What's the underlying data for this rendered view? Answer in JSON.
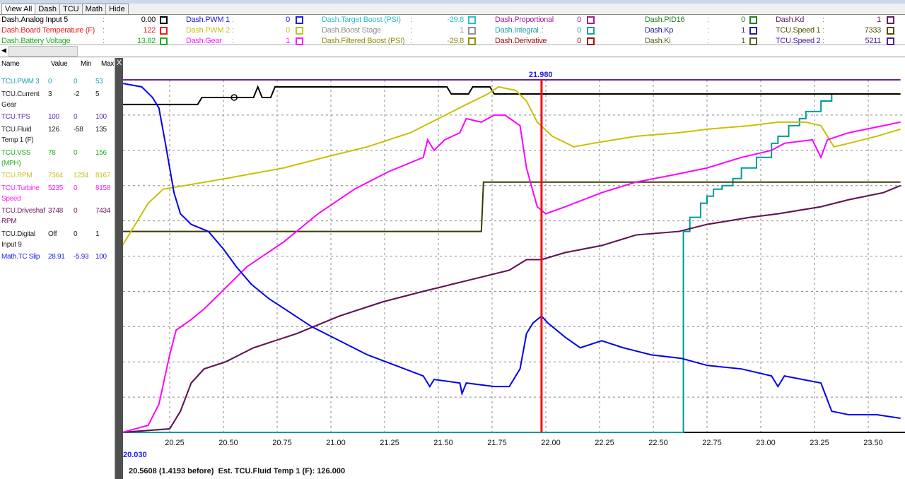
{
  "tabs": [
    "View All",
    "Dash",
    "TCU",
    "Math",
    "Hide"
  ],
  "legend": [
    [
      {
        "name": "Dash.Analog Input 5",
        "value": "0.00",
        "color": "#000000"
      },
      {
        "name": "Dash.Board Temperature (F)",
        "value": "122",
        "color": "#e82020"
      },
      {
        "name": "Dash.Battery Voltage",
        "value": "13.82",
        "color": "#20b020"
      }
    ],
    [
      {
        "name": "Dash.PWM 1",
        "value": "0",
        "color": "#2020e0"
      },
      {
        "name": "Dash.PWM 2",
        "value": "0",
        "color": "#c8c020"
      },
      {
        "name": "Dash.Gear",
        "value": "1",
        "color": "#ff20ff"
      }
    ],
    [
      {
        "name": "Dash.Target Boost (PSI)",
        "value": "-29.8",
        "color": "#30c0c8"
      },
      {
        "name": "Dash.Boost Stage",
        "value": "1",
        "color": "#909090"
      },
      {
        "name": "Dash.Filtered Boost (PSI)",
        "value": "-29.8",
        "color": "#909010"
      }
    ],
    [
      {
        "name": "Dash.Proportional",
        "value": "0",
        "color": "#a020a0"
      },
      {
        "name": "Dash.Integral",
        "value": "0",
        "color": "#20a0a0"
      },
      {
        "name": "Dash.Derivative",
        "value": "0",
        "color": "#a01010"
      }
    ],
    [
      {
        "name": "Dash.PID16",
        "value": "0",
        "color": "#208020"
      },
      {
        "name": "Dash.Kp",
        "value": "1",
        "color": "#2020a0"
      },
      {
        "name": "Dash.Ki",
        "value": "1",
        "color": "#606020"
      }
    ],
    [
      {
        "name": "Dash.Kd",
        "value": "1",
        "color": "#602060"
      },
      {
        "name": "TCU.Speed 1",
        "value": "7333",
        "color": "#505000"
      },
      {
        "name": "TCU.Speed 2",
        "value": "5211",
        "color": "#5020a0"
      }
    ]
  ],
  "colon": ":",
  "table": {
    "headers": [
      "Name",
      "Value",
      "Min",
      "Max"
    ],
    "rows": [
      {
        "name": "TCU.PWM 3",
        "value": "0",
        "min": "0",
        "max": "53",
        "color": "#20a0b0"
      },
      {
        "name": "TCU.Current Gear",
        "value": "3",
        "min": "-2",
        "max": "5",
        "color": "#222222"
      },
      {
        "name": "TCU.TPS",
        "value": "100",
        "min": "0",
        "max": "100",
        "color": "#6030b0"
      },
      {
        "name": "TCU.Fluid Temp 1 (F)",
        "value": "126",
        "min": "-58",
        "max": "135",
        "color": "#222222"
      },
      {
        "name": "TCU.VSS (MPH)",
        "value": "78",
        "min": "0",
        "max": "156",
        "color": "#20b020"
      },
      {
        "name": "TCU.RPM",
        "value": "7364",
        "min": "1234",
        "max": "8167",
        "color": "#c8c020"
      },
      {
        "name": "TCU.Turbine Speed",
        "value": "5235",
        "min": "0",
        "max": "8158",
        "color": "#ff20ff"
      },
      {
        "name": "TCU.Driveshaf RPM",
        "value": "3748",
        "min": "0",
        "max": "7434",
        "color": "#702060"
      },
      {
        "name": "TCU.Digital Input 9",
        "value": "Off",
        "min": "0",
        "max": "1",
        "color": "#222222"
      },
      {
        "name": "Math.TC Slip",
        "value": "28.91",
        "min": "-5.93",
        "max": "100",
        "color": "#2020e0"
      }
    ]
  },
  "close_label": "X",
  "start_label": "20.030",
  "cursor_label": "21.980",
  "status": "20.5608 (1.4193 before)  Est. TCU.Fluid Temp 1 (F): 126.000",
  "chart_data": {
    "type": "line",
    "xlim": [
      20.03,
      23.65
    ],
    "ylim": [
      0,
      100
    ],
    "grid": true,
    "x_ticks": [
      "20.25",
      "20.50",
      "20.75",
      "21.00",
      "21.25",
      "21.50",
      "21.75",
      "22.00",
      "22.25",
      "22.50",
      "22.75",
      "23.00",
      "23.25",
      "23.50"
    ],
    "cursor_x": 21.98,
    "series": [
      {
        "color": "#6a2090",
        "step": false,
        "points": [
          [
            20.03,
            100
          ],
          [
            23.65,
            100
          ]
        ]
      },
      {
        "color": "#009a9a",
        "step": true,
        "points": [
          [
            20.03,
            0
          ],
          [
            22.63,
            0
          ],
          [
            22.64,
            57
          ],
          [
            22.67,
            61
          ],
          [
            22.72,
            65
          ],
          [
            22.75,
            67
          ],
          [
            22.78,
            69
          ],
          [
            22.82,
            70
          ],
          [
            22.87,
            72
          ],
          [
            22.91,
            75
          ],
          [
            22.98,
            78
          ],
          [
            23.05,
            82
          ],
          [
            23.08,
            84
          ],
          [
            23.13,
            87
          ],
          [
            23.18,
            89
          ],
          [
            23.21,
            91
          ],
          [
            23.28,
            94
          ],
          [
            23.33,
            96
          ],
          [
            23.65,
            96
          ]
        ]
      },
      {
        "color": "#3b3b00",
        "step": false,
        "points": [
          [
            20.03,
            57
          ],
          [
            21.7,
            57
          ],
          [
            21.71,
            71
          ],
          [
            23.65,
            71
          ]
        ]
      },
      {
        "color": "#000000",
        "step": false,
        "marker": [
          20.55,
          95
        ],
        "points": [
          [
            20.03,
            93
          ],
          [
            20.38,
            93
          ],
          [
            20.4,
            95
          ],
          [
            20.64,
            95
          ],
          [
            20.66,
            98
          ],
          [
            20.68,
            95
          ],
          [
            20.72,
            95
          ],
          [
            20.74,
            98
          ],
          [
            21.54,
            98
          ],
          [
            21.56,
            96
          ],
          [
            21.64,
            96
          ],
          [
            21.66,
            98
          ],
          [
            21.74,
            98
          ],
          [
            21.76,
            96
          ],
          [
            23.65,
            96
          ]
        ]
      },
      {
        "color": "#22aa22",
        "step": false,
        "points": [
          [
            20.03,
            0
          ],
          [
            20.25,
            1
          ],
          [
            20.3,
            6
          ],
          [
            20.35,
            14
          ],
          [
            20.41,
            18
          ],
          [
            20.51,
            20
          ],
          [
            20.64,
            24
          ],
          [
            20.84,
            28
          ],
          [
            21.04,
            33
          ],
          [
            21.24,
            37
          ],
          [
            21.43,
            40
          ],
          [
            21.63,
            43
          ],
          [
            21.83,
            46
          ],
          [
            21.91,
            49
          ],
          [
            21.98,
            49
          ],
          [
            22.09,
            51
          ],
          [
            22.26,
            53
          ],
          [
            22.42,
            56
          ],
          [
            22.62,
            57
          ],
          [
            22.75,
            59
          ],
          [
            22.95,
            61
          ],
          [
            23.08,
            62
          ],
          [
            23.28,
            64
          ],
          [
            23.41,
            66
          ],
          [
            23.57,
            68
          ],
          [
            23.65,
            70
          ]
        ]
      },
      {
        "color": "#6a0f5a",
        "step": false,
        "points": [
          [
            20.03,
            0
          ],
          [
            20.25,
            1
          ],
          [
            20.3,
            6
          ],
          [
            20.35,
            14
          ],
          [
            20.41,
            18
          ],
          [
            20.51,
            20
          ],
          [
            20.64,
            24
          ],
          [
            20.84,
            28
          ],
          [
            21.04,
            33
          ],
          [
            21.24,
            37
          ],
          [
            21.43,
            40
          ],
          [
            21.63,
            43
          ],
          [
            21.83,
            46
          ],
          [
            21.91,
            49
          ],
          [
            21.98,
            49
          ],
          [
            22.09,
            51
          ],
          [
            22.26,
            53
          ],
          [
            22.42,
            56
          ],
          [
            22.62,
            57
          ],
          [
            22.75,
            59
          ],
          [
            22.95,
            61
          ],
          [
            23.08,
            62
          ],
          [
            23.28,
            64
          ],
          [
            23.41,
            66
          ],
          [
            23.57,
            68
          ],
          [
            23.65,
            70
          ]
        ]
      },
      {
        "color": "#c8c000",
        "step": false,
        "points": [
          [
            20.03,
            53
          ],
          [
            20.09,
            59
          ],
          [
            20.15,
            65
          ],
          [
            20.22,
            69
          ],
          [
            20.32,
            70
          ],
          [
            20.51,
            72
          ],
          [
            20.78,
            75
          ],
          [
            20.97,
            78
          ],
          [
            21.17,
            81
          ],
          [
            21.37,
            85
          ],
          [
            21.5,
            89
          ],
          [
            21.63,
            93
          ],
          [
            21.73,
            96
          ],
          [
            21.78,
            98
          ],
          [
            21.86,
            97
          ],
          [
            21.91,
            94
          ],
          [
            21.96,
            88
          ],
          [
            22.03,
            84
          ],
          [
            22.13,
            81
          ],
          [
            22.22,
            82
          ],
          [
            22.42,
            84
          ],
          [
            22.62,
            85
          ],
          [
            22.75,
            86
          ],
          [
            22.95,
            87
          ],
          [
            23.08,
            88
          ],
          [
            23.21,
            88
          ],
          [
            23.28,
            87
          ],
          [
            23.34,
            81
          ],
          [
            23.41,
            82
          ],
          [
            23.54,
            84
          ],
          [
            23.65,
            86
          ]
        ]
      },
      {
        "color": "#ff00ff",
        "step": false,
        "points": [
          [
            20.03,
            0
          ],
          [
            20.15,
            2
          ],
          [
            20.2,
            8
          ],
          [
            20.25,
            22
          ],
          [
            20.28,
            29
          ],
          [
            20.35,
            32
          ],
          [
            20.41,
            35
          ],
          [
            20.51,
            41
          ],
          [
            20.61,
            47
          ],
          [
            20.78,
            54
          ],
          [
            20.94,
            62
          ],
          [
            21.11,
            69
          ],
          [
            21.27,
            74
          ],
          [
            21.43,
            78
          ],
          [
            21.45,
            83
          ],
          [
            21.48,
            80
          ],
          [
            21.53,
            83
          ],
          [
            21.6,
            85
          ],
          [
            21.63,
            89
          ],
          [
            21.7,
            88
          ],
          [
            21.76,
            90
          ],
          [
            21.81,
            90
          ],
          [
            21.88,
            87
          ],
          [
            21.91,
            75
          ],
          [
            21.96,
            64
          ],
          [
            22.0,
            62
          ],
          [
            22.09,
            64
          ],
          [
            22.26,
            68
          ],
          [
            22.42,
            71
          ],
          [
            22.59,
            73
          ],
          [
            22.75,
            75
          ],
          [
            22.91,
            78
          ],
          [
            23.05,
            80
          ],
          [
            23.11,
            82
          ],
          [
            23.24,
            83
          ],
          [
            23.28,
            78
          ],
          [
            23.31,
            83
          ],
          [
            23.41,
            85
          ],
          [
            23.57,
            87
          ],
          [
            23.65,
            88
          ]
        ]
      },
      {
        "color": "#0000ee",
        "step": false,
        "points": [
          [
            20.03,
            99
          ],
          [
            20.12,
            98
          ],
          [
            20.17,
            95
          ],
          [
            20.2,
            92
          ],
          [
            20.23,
            82
          ],
          [
            20.27,
            68
          ],
          [
            20.3,
            62
          ],
          [
            20.35,
            59
          ],
          [
            20.43,
            57
          ],
          [
            20.5,
            52
          ],
          [
            20.56,
            47
          ],
          [
            20.63,
            42
          ],
          [
            20.71,
            38
          ],
          [
            20.81,
            34
          ],
          [
            20.91,
            30
          ],
          [
            21.04,
            26
          ],
          [
            21.17,
            22
          ],
          [
            21.3,
            19
          ],
          [
            21.43,
            16
          ],
          [
            21.46,
            13
          ],
          [
            21.48,
            15
          ],
          [
            21.6,
            14
          ],
          [
            21.61,
            11
          ],
          [
            21.63,
            14
          ],
          [
            21.76,
            13
          ],
          [
            21.83,
            13
          ],
          [
            21.88,
            18
          ],
          [
            21.91,
            28
          ],
          [
            21.94,
            31
          ],
          [
            21.98,
            33
          ],
          [
            22.01,
            31
          ],
          [
            22.09,
            27
          ],
          [
            22.16,
            24
          ],
          [
            22.26,
            26
          ],
          [
            22.36,
            24
          ],
          [
            22.49,
            22
          ],
          [
            22.63,
            21
          ],
          [
            22.75,
            19
          ],
          [
            22.91,
            18
          ],
          [
            23.05,
            16
          ],
          [
            23.08,
            13
          ],
          [
            23.11,
            16
          ],
          [
            23.28,
            14
          ],
          [
            23.33,
            6
          ],
          [
            23.41,
            5
          ],
          [
            23.54,
            5
          ],
          [
            23.65,
            4
          ]
        ]
      }
    ]
  }
}
